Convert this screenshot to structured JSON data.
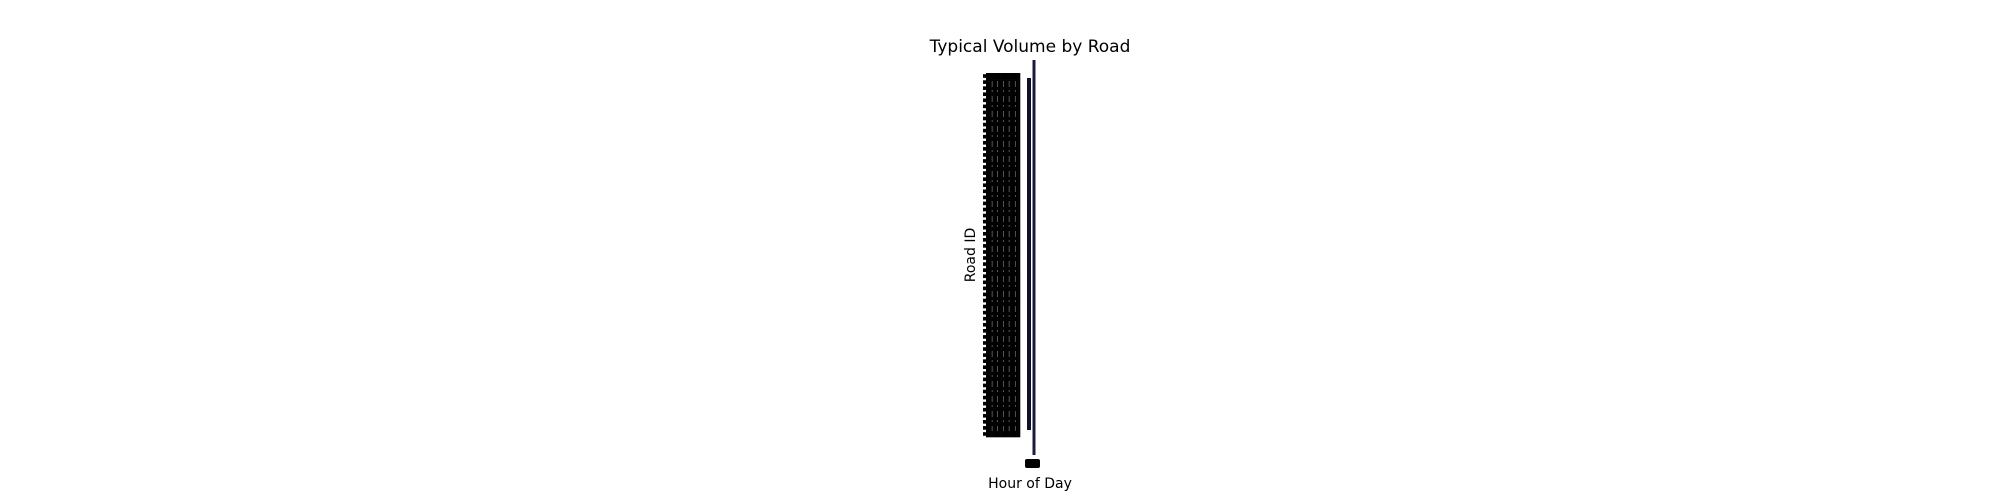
{
  "chart_data": {
    "type": "heatmap",
    "title": "Typical Volume by Road",
    "xlabel": "Hour of Day",
    "ylabel": "Road ID",
    "row_count": 60,
    "column_count": 24,
    "tick_labels_illegible": true,
    "colorbar": {
      "present": true,
      "colormap": "dark",
      "ticks_illegible": true
    },
    "colors": {
      "cell": "#000000",
      "colorbar_edge": "#1b1c3d",
      "colorbar_fill": "#101028",
      "background": "#ffffff"
    }
  }
}
